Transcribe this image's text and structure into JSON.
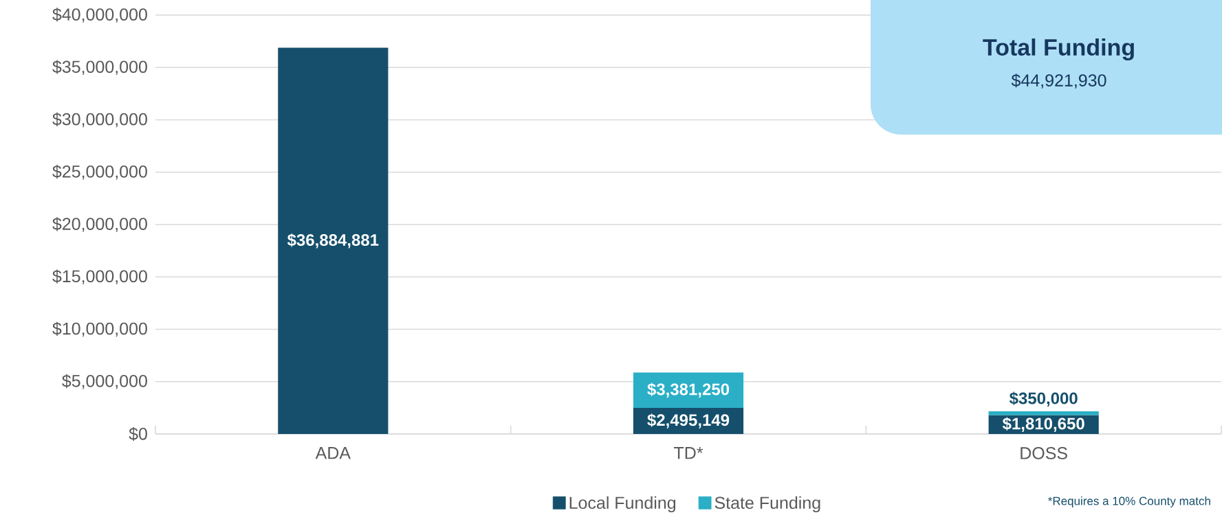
{
  "chart_data": {
    "type": "bar",
    "stacked": true,
    "categories": [
      "ADA",
      "TD*",
      "DOSS"
    ],
    "series": [
      {
        "name": "Local Funding",
        "color": "#154f6b",
        "values": [
          36884881,
          2495149,
          1810650
        ],
        "value_labels": [
          "$36,884,881",
          "$2,495,149",
          "$1,810,650"
        ]
      },
      {
        "name": "State Funding",
        "color": "#2aafc6",
        "values": [
          null,
          3381250,
          350000
        ],
        "value_labels": [
          null,
          "$3,381,250",
          "$350,000"
        ]
      }
    ],
    "ylim": [
      0,
      40000000
    ],
    "yticks": [
      {
        "value": 0,
        "label": "$0"
      },
      {
        "value": 5000000,
        "label": "$5,000,000"
      },
      {
        "value": 10000000,
        "label": "$10,000,000"
      },
      {
        "value": 15000000,
        "label": "$15,000,000"
      },
      {
        "value": 20000000,
        "label": "$20,000,000"
      },
      {
        "value": 25000000,
        "label": "$25,000,000"
      },
      {
        "value": 30000000,
        "label": "$30,000,000"
      },
      {
        "value": 35000000,
        "label": "$35,000,000"
      },
      {
        "value": 40000000,
        "label": "$40,000,000"
      }
    ],
    "grid": "y",
    "legend": "bottom",
    "annotations": [
      "Total Funding",
      "$44,921,930",
      "*Requires a 10% County match"
    ]
  }
}
